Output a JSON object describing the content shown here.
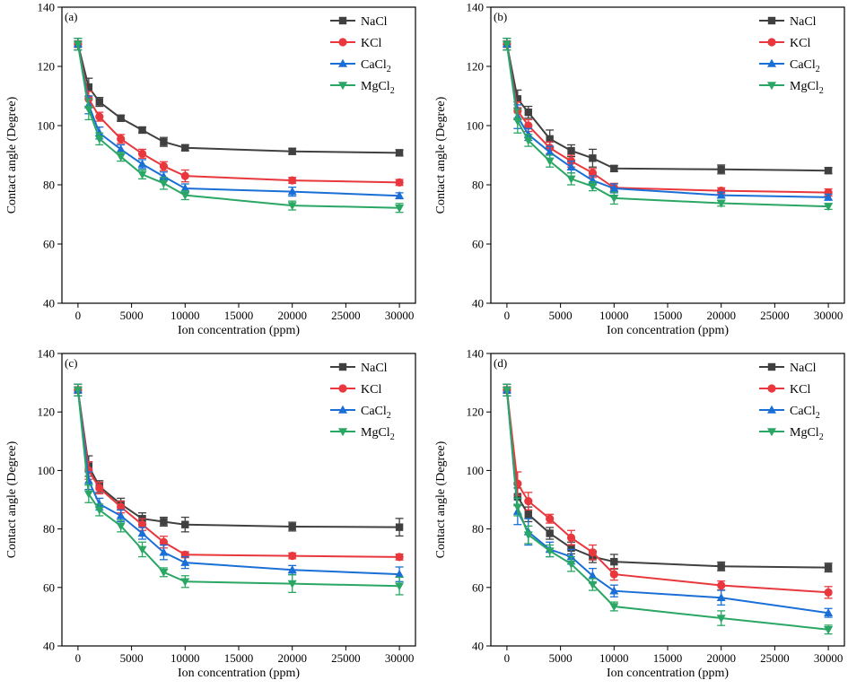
{
  "chart_data": [
    {
      "type": "line",
      "panel_label": "(a)",
      "xlabel": "Ion concentration (ppm)",
      "ylabel": "Contact angle (Degree)",
      "xlim": [
        -1500,
        31500
      ],
      "ylim": [
        40,
        140
      ],
      "xticks": [
        0,
        5000,
        10000,
        15000,
        20000,
        25000,
        30000
      ],
      "yticks": [
        40,
        60,
        80,
        100,
        120,
        140
      ],
      "x": [
        0,
        1000,
        2000,
        4000,
        6000,
        8000,
        10000,
        20000,
        30000
      ],
      "legend_position": "top-right",
      "series": [
        {
          "name": "NaCl",
          "sub": "",
          "color": "#404040",
          "marker": "square",
          "values": [
            127.5,
            113,
            108,
            102.5,
            98.5,
            94.5,
            92.5,
            91.3,
            90.8
          ],
          "errors": [
            2,
            3,
            1.5,
            1,
            1,
            1.5,
            1,
            1,
            1
          ]
        },
        {
          "name": "KCl",
          "sub": "",
          "color": "#e8383d",
          "marker": "circle",
          "values": [
            127.5,
            109,
            103,
            95.5,
            90.5,
            86.3,
            83,
            81.5,
            80.8
          ],
          "errors": [
            2,
            2.5,
            1.5,
            1.5,
            1.5,
            1.5,
            2,
            1,
            1
          ]
        },
        {
          "name": "CaCl",
          "sub": "2",
          "color": "#1a6fd6",
          "marker": "triangle-up",
          "values": [
            127.5,
            107,
            97.5,
            92,
            87,
            82.8,
            78.8,
            77.7,
            76.3
          ],
          "errors": [
            2,
            3,
            2,
            1.5,
            1.5,
            1.5,
            1.5,
            1.5,
            1
          ]
        },
        {
          "name": "MgCl",
          "sub": "2",
          "color": "#2aa764",
          "marker": "triangle-down",
          "values": [
            127.5,
            105.5,
            95.5,
            89.5,
            83.5,
            80.5,
            76.5,
            73,
            72.2
          ],
          "errors": [
            2,
            3.5,
            2,
            1.5,
            1.5,
            2,
            1.5,
            1.5,
            1.5
          ]
        }
      ]
    },
    {
      "type": "line",
      "panel_label": "(b)",
      "xlabel": "Ion concentration (ppm)",
      "ylabel": "Contact angle (Degree)",
      "xlim": [
        -1500,
        31500
      ],
      "ylim": [
        40,
        140
      ],
      "xticks": [
        0,
        5000,
        10000,
        15000,
        20000,
        25000,
        30000
      ],
      "yticks": [
        40,
        60,
        80,
        100,
        120,
        140
      ],
      "x": [
        0,
        1000,
        2000,
        4000,
        6000,
        8000,
        10000,
        20000,
        30000
      ],
      "legend_position": "top-right",
      "series": [
        {
          "name": "NaCl",
          "sub": "",
          "color": "#404040",
          "marker": "square",
          "values": [
            127.5,
            109,
            104.5,
            95.5,
            91.5,
            89,
            85.5,
            85.2,
            84.8
          ],
          "errors": [
            2,
            3,
            2,
            3,
            2,
            3,
            1,
            1.5,
            1
          ]
        },
        {
          "name": "KCl",
          "sub": "",
          "color": "#e8383d",
          "marker": "circle",
          "values": [
            127.5,
            105,
            100,
            92.5,
            88,
            84,
            79,
            78,
            77.4
          ],
          "errors": [
            2,
            3,
            2,
            2,
            2,
            1.5,
            1.5,
            1,
            1.2
          ]
        },
        {
          "name": "CaCl",
          "sub": "2",
          "color": "#1a6fd6",
          "marker": "triangle-up",
          "values": [
            127.5,
            103,
            97,
            91,
            86,
            81.5,
            78.8,
            76.5,
            75.8
          ],
          "errors": [
            2,
            4,
            2,
            2,
            2,
            1.5,
            1.5,
            1,
            1
          ]
        },
        {
          "name": "MgCl",
          "sub": "2",
          "color": "#2aa764",
          "marker": "triangle-down",
          "values": [
            127.5,
            101.5,
            95,
            88,
            82,
            79.5,
            75.5,
            73.8,
            72.7
          ],
          "errors": [
            2,
            4,
            2,
            2,
            2,
            1.5,
            2,
            1,
            1
          ]
        }
      ]
    },
    {
      "type": "line",
      "panel_label": "(c)",
      "xlabel": "Ion concentration (ppm)",
      "ylabel": "Contact angle (Degree)",
      "xlim": [
        -1500,
        31500
      ],
      "ylim": [
        40,
        140
      ],
      "xticks": [
        0,
        5000,
        10000,
        15000,
        20000,
        25000,
        30000
      ],
      "yticks": [
        40,
        60,
        80,
        100,
        120,
        140
      ],
      "x": [
        0,
        1000,
        2000,
        4000,
        6000,
        8000,
        10000,
        20000,
        30000
      ],
      "legend_position": "top-right",
      "series": [
        {
          "name": "NaCl",
          "sub": "",
          "color": "#404040",
          "marker": "square",
          "values": [
            127.5,
            101.5,
            94.5,
            88.5,
            83.5,
            82.5,
            81.5,
            80.8,
            80.6
          ],
          "errors": [
            2,
            3.5,
            2,
            2,
            2,
            1.5,
            2.5,
            1.5,
            3
          ]
        },
        {
          "name": "KCl",
          "sub": "",
          "color": "#e8383d",
          "marker": "circle",
          "values": [
            127.5,
            100,
            94,
            87.5,
            81.5,
            75.5,
            71.2,
            70.8,
            70.4
          ],
          "errors": [
            2,
            3,
            2,
            2,
            2,
            2,
            1,
            1,
            1
          ]
        },
        {
          "name": "CaCl",
          "sub": "2",
          "color": "#1a6fd6",
          "marker": "triangle-up",
          "values": [
            127.5,
            96.5,
            88.5,
            84.5,
            78.5,
            72,
            68.5,
            66,
            64.5
          ],
          "errors": [
            2,
            3,
            2,
            2,
            2,
            2.5,
            2,
            1.5,
            2.5
          ]
        },
        {
          "name": "MgCl",
          "sub": "2",
          "color": "#2aa764",
          "marker": "triangle-down",
          "values": [
            127.5,
            92,
            86.5,
            81,
            73,
            65.2,
            62,
            61.3,
            60.5
          ],
          "errors": [
            2,
            3,
            2,
            2,
            2.5,
            1.5,
            2,
            3,
            3
          ]
        }
      ]
    },
    {
      "type": "line",
      "panel_label": "(d)",
      "xlabel": "Ion concentration (ppm)",
      "ylabel": "Contact angle (Degree)",
      "xlim": [
        -1500,
        31500
      ],
      "ylim": [
        40,
        140
      ],
      "xticks": [
        0,
        5000,
        10000,
        15000,
        20000,
        25000,
        30000
      ],
      "yticks": [
        40,
        60,
        80,
        100,
        120,
        140
      ],
      "x": [
        0,
        1000,
        2000,
        4000,
        6000,
        8000,
        10000,
        20000,
        30000
      ],
      "legend_position": "top-right",
      "series": [
        {
          "name": "NaCl",
          "sub": "",
          "color": "#404040",
          "marker": "square",
          "values": [
            127.5,
            91,
            85,
            78.5,
            73.5,
            70.5,
            68.8,
            67.2,
            66.8
          ],
          "errors": [
            2,
            3,
            2.5,
            2,
            2,
            2,
            2.5,
            1.5,
            1.5
          ]
        },
        {
          "name": "KCl",
          "sub": "",
          "color": "#e8383d",
          "marker": "circle",
          "values": [
            127.5,
            95.5,
            89.5,
            83.5,
            77,
            72,
            64.5,
            60.7,
            58.3
          ],
          "errors": [
            2,
            4,
            3,
            1.5,
            2.5,
            2.5,
            2,
            1.5,
            2
          ]
        },
        {
          "name": "CaCl",
          "sub": "2",
          "color": "#1a6fd6",
          "marker": "triangle-up",
          "values": [
            127.5,
            86,
            79,
            73,
            70.5,
            64,
            58.8,
            56.5,
            51.3
          ],
          "errors": [
            2,
            4.5,
            4.5,
            2.5,
            2.5,
            2.5,
            2,
            2.5,
            1.5
          ]
        },
        {
          "name": "MgCl",
          "sub": "2",
          "color": "#2aa764",
          "marker": "triangle-down",
          "values": [
            127.5,
            87.5,
            78,
            72.5,
            68,
            61,
            53.5,
            49.5,
            45.6
          ],
          "errors": [
            2,
            3,
            3,
            2,
            2.5,
            2,
            1.5,
            2.5,
            1.5
          ]
        }
      ]
    }
  ]
}
